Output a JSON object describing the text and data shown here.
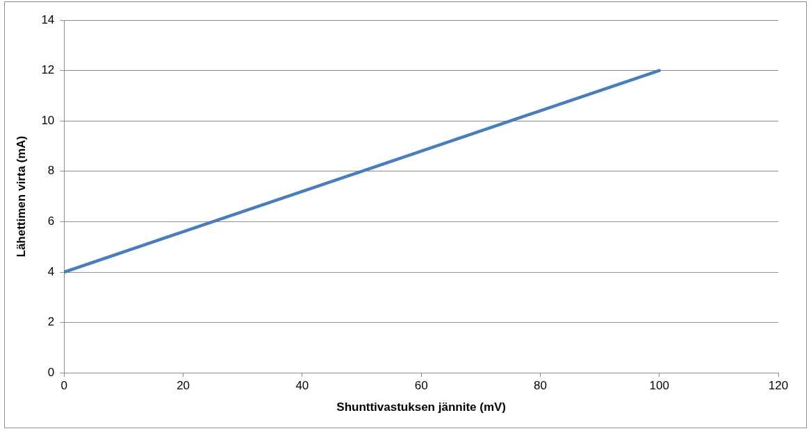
{
  "chart_data": {
    "type": "line",
    "xlabel": "Shunttivastuksen jännite (mV)",
    "ylabel": "Lähettimen virta (mA)",
    "x": [
      0,
      100
    ],
    "series": [
      {
        "color": "#4a7ebb",
        "values": [
          4,
          12
        ]
      }
    ],
    "xlim": [
      0,
      120
    ],
    "xticks": [
      0,
      20,
      40,
      60,
      80,
      100,
      120
    ],
    "ylim": [
      0,
      14
    ],
    "yticks": [
      0,
      2,
      4,
      6,
      8,
      10,
      12,
      14
    ],
    "grid": "y",
    "legend": false,
    "marker": "none",
    "line_style": "solid"
  }
}
